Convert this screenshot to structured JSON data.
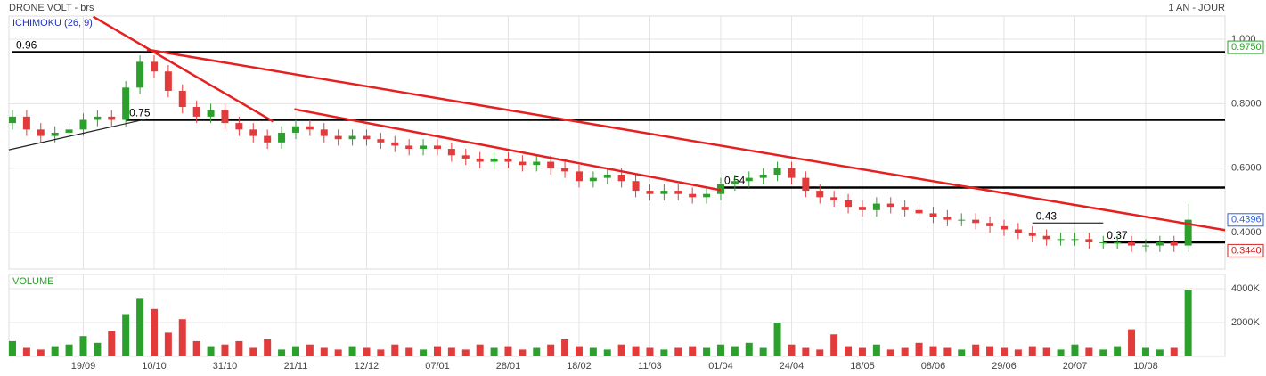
{
  "chart_data": {
    "type": "candlestick",
    "title": "DRONE VOLT - brs",
    "subtitle": "1 AN - JOUR",
    "indicator": "ICHIMOKU (26, 9)",
    "color_up": "#2ca02c",
    "color_down": "#e23b3b",
    "open": [
      0.74,
      0.76,
      0.72,
      0.7,
      0.71,
      0.72,
      0.75,
      0.76,
      0.75,
      0.85,
      0.93,
      0.9,
      0.84,
      0.79,
      0.76,
      0.78,
      0.74,
      0.72,
      0.7,
      0.68,
      0.71,
      0.73,
      0.72,
      0.7,
      0.69,
      0.7,
      0.69,
      0.68,
      0.67,
      0.66,
      0.67,
      0.66,
      0.64,
      0.63,
      0.62,
      0.63,
      0.62,
      0.61,
      0.62,
      0.6,
      0.59,
      0.56,
      0.57,
      0.58,
      0.56,
      0.53,
      0.52,
      0.53,
      0.52,
      0.51,
      0.52,
      0.55,
      0.56,
      0.57,
      0.58,
      0.6,
      0.57,
      0.53,
      0.51,
      0.5,
      0.48,
      0.47,
      0.49,
      0.48,
      0.47,
      0.46,
      0.45,
      0.44,
      0.44,
      0.43,
      0.42,
      0.41,
      0.4,
      0.39,
      0.38,
      0.38,
      0.38,
      0.37,
      0.37,
      0.37,
      0.36,
      0.36,
      0.37,
      0.36
    ],
    "high": [
      0.78,
      0.78,
      0.74,
      0.73,
      0.74,
      0.77,
      0.78,
      0.78,
      0.87,
      0.95,
      0.95,
      0.92,
      0.86,
      0.81,
      0.8,
      0.8,
      0.76,
      0.74,
      0.72,
      0.73,
      0.75,
      0.75,
      0.74,
      0.72,
      0.72,
      0.72,
      0.71,
      0.7,
      0.69,
      0.69,
      0.69,
      0.68,
      0.66,
      0.65,
      0.65,
      0.65,
      0.64,
      0.64,
      0.64,
      0.62,
      0.61,
      0.59,
      0.6,
      0.6,
      0.58,
      0.55,
      0.55,
      0.55,
      0.54,
      0.54,
      0.57,
      0.58,
      0.59,
      0.6,
      0.62,
      0.62,
      0.59,
      0.55,
      0.53,
      0.52,
      0.5,
      0.51,
      0.51,
      0.5,
      0.49,
      0.48,
      0.47,
      0.46,
      0.46,
      0.45,
      0.44,
      0.43,
      0.42,
      0.41,
      0.4,
      0.4,
      0.4,
      0.39,
      0.39,
      0.39,
      0.38,
      0.39,
      0.39,
      0.49
    ],
    "low": [
      0.72,
      0.7,
      0.68,
      0.68,
      0.69,
      0.7,
      0.73,
      0.73,
      0.73,
      0.83,
      0.88,
      0.82,
      0.77,
      0.74,
      0.74,
      0.72,
      0.7,
      0.68,
      0.66,
      0.66,
      0.69,
      0.7,
      0.68,
      0.67,
      0.67,
      0.67,
      0.66,
      0.65,
      0.64,
      0.64,
      0.64,
      0.62,
      0.61,
      0.6,
      0.6,
      0.6,
      0.59,
      0.59,
      0.58,
      0.57,
      0.54,
      0.54,
      0.55,
      0.54,
      0.51,
      0.5,
      0.5,
      0.5,
      0.49,
      0.49,
      0.5,
      0.53,
      0.54,
      0.55,
      0.56,
      0.55,
      0.51,
      0.49,
      0.48,
      0.46,
      0.45,
      0.45,
      0.46,
      0.45,
      0.44,
      0.43,
      0.42,
      0.42,
      0.41,
      0.4,
      0.39,
      0.38,
      0.37,
      0.36,
      0.36,
      0.36,
      0.35,
      0.35,
      0.35,
      0.34,
      0.34,
      0.34,
      0.34,
      0.34
    ],
    "close": [
      0.76,
      0.72,
      0.7,
      0.71,
      0.72,
      0.75,
      0.76,
      0.75,
      0.85,
      0.93,
      0.9,
      0.84,
      0.79,
      0.76,
      0.78,
      0.74,
      0.72,
      0.7,
      0.68,
      0.71,
      0.73,
      0.72,
      0.7,
      0.69,
      0.7,
      0.69,
      0.68,
      0.67,
      0.66,
      0.67,
      0.66,
      0.64,
      0.63,
      0.62,
      0.63,
      0.62,
      0.61,
      0.62,
      0.6,
      0.59,
      0.56,
      0.57,
      0.58,
      0.56,
      0.53,
      0.52,
      0.53,
      0.52,
      0.51,
      0.52,
      0.55,
      0.56,
      0.57,
      0.58,
      0.6,
      0.57,
      0.53,
      0.51,
      0.5,
      0.48,
      0.47,
      0.49,
      0.48,
      0.47,
      0.46,
      0.45,
      0.44,
      0.44,
      0.43,
      0.42,
      0.41,
      0.4,
      0.39,
      0.38,
      0.38,
      0.38,
      0.37,
      0.37,
      0.37,
      0.36,
      0.36,
      0.37,
      0.36,
      0.44
    ],
    "xlim": [
      -0.25,
      85.6
    ],
    "xticks": [
      {
        "value": 5,
        "label": "19/09"
      },
      {
        "value": 10,
        "label": "10/10"
      },
      {
        "value": 15,
        "label": "31/10"
      },
      {
        "value": 20,
        "label": "21/11"
      },
      {
        "value": 25,
        "label": "12/12"
      },
      {
        "value": 30,
        "label": "07/01"
      },
      {
        "value": 35,
        "label": "28/01"
      },
      {
        "value": 40,
        "label": "18/02"
      },
      {
        "value": 45,
        "label": "11/03"
      },
      {
        "value": 50,
        "label": "01/04"
      },
      {
        "value": 55,
        "label": "24/04"
      },
      {
        "value": 60,
        "label": "18/05"
      },
      {
        "value": 65,
        "label": "08/06"
      },
      {
        "value": 70,
        "label": "29/06"
      },
      {
        "value": 75,
        "label": "20/07"
      },
      {
        "value": 80,
        "label": "10/08"
      }
    ],
    "ylim": [
      0.287,
      1.072
    ],
    "yticks": [
      {
        "value": 1,
        "label": "1.000"
      },
      {
        "value": 0.8,
        "label": "0.8000"
      },
      {
        "value": 0.6,
        "label": "0.6000"
      },
      {
        "value": 0.4,
        "label": "0.4000"
      }
    ],
    "grid": true,
    "levels": [
      {
        "value": 0.96,
        "start": 0
      },
      {
        "value": 0.75,
        "start": 8
      },
      {
        "value": 0.54,
        "start": 50
      },
      {
        "value": 0.43,
        "start": 72,
        "end": 77
      },
      {
        "value": 0.37,
        "start": 77
      }
    ],
    "trendlines": [
      {
        "color": "#e62020",
        "x": [
          5.7,
          18.4
        ],
        "y": [
          1.07,
          0.745
        ]
      },
      {
        "color": "#e62020",
        "x": [
          9.5,
          85.6
        ],
        "y": [
          0.968,
          0.408
        ]
      },
      {
        "color": "#e62020",
        "x": [
          19.9,
          50
        ],
        "y": [
          0.783,
          0.532
        ]
      },
      {
        "color": "#222222",
        "x": [
          -0.25,
          9.5
        ],
        "y": [
          0.657,
          0.753
        ]
      }
    ],
    "price_labels": [
      {
        "value": 0.975,
        "label": "0.9750",
        "color": "#2e9e2e"
      },
      {
        "value": 0.4396,
        "label": "0.4396",
        "color": "#2f5fd0"
      },
      {
        "value": 0.344,
        "label": "0.3440",
        "color": "#d02020"
      }
    ],
    "volume": {
      "title": "VOLUME",
      "values": [
        900,
        500,
        400,
        600,
        700,
        1200,
        800,
        1500,
        2500,
        3400,
        2800,
        1400,
        2200,
        900,
        600,
        700,
        900,
        500,
        1000,
        400,
        600,
        700,
        500,
        400,
        600,
        500,
        400,
        700,
        500,
        400,
        600,
        500,
        400,
        700,
        500,
        600,
        400,
        500,
        700,
        1000,
        600,
        500,
        400,
        700,
        600,
        500,
        400,
        500,
        600,
        500,
        700,
        600,
        800,
        500,
        2000,
        700,
        500,
        400,
        1300,
        600,
        500,
        700,
        400,
        500,
        800,
        600,
        500,
        400,
        700,
        600,
        500,
        400,
        600,
        500,
        400,
        700,
        500,
        400,
        600,
        1600,
        500,
        400,
        500,
        3900
      ],
      "ylim": [
        0,
        4842
      ],
      "yticks": [
        {
          "value": 4000,
          "label": "4000K"
        },
        {
          "value": 2000,
          "label": "2000K"
        }
      ]
    }
  }
}
